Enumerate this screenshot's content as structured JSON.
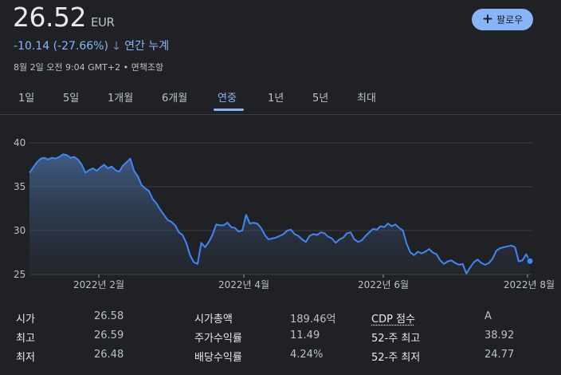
{
  "header": {
    "price": "26.52",
    "currency": "EUR",
    "change": "-10.14 (-27.66%)",
    "change_arrow": "🡓",
    "change_period": "연간 누계",
    "meta": "8월 2일 오전 9:04 GMT+2 • 면책조항",
    "follow_label": "팔로우",
    "follow_icon": "plus-icon"
  },
  "tabs": [
    {
      "label": "1일"
    },
    {
      "label": "5일"
    },
    {
      "label": "1개월"
    },
    {
      "label": "6개월"
    },
    {
      "label": "연중",
      "active": true
    },
    {
      "label": "1년"
    },
    {
      "label": "5년"
    },
    {
      "label": "최대"
    }
  ],
  "colors": {
    "background": "#202124",
    "line": "#4285f4",
    "accent": "#8ab4f8",
    "gridline": "#3c4043"
  },
  "chart_data": {
    "type": "area",
    "x_tick_labels": [
      "2022년 2월",
      "2022년 4월",
      "2022년 6월",
      "2022년 8월"
    ],
    "y_tick_labels": [
      "40",
      "35",
      "30",
      "25"
    ],
    "ylim": [
      25,
      40
    ],
    "grid": true,
    "xlabel": "",
    "ylabel": "",
    "series": [
      {
        "values": [
          36.6,
          37.2,
          37.8,
          38.2,
          38.3,
          38.1,
          38.3,
          38.2,
          38.4,
          38.7,
          38.6,
          38.3,
          38.4,
          38.1,
          37.5,
          36.6,
          36.9,
          37.1,
          36.8,
          37.2,
          37.5,
          37.1,
          37.3,
          36.9,
          36.7,
          37.4,
          37.8,
          38.2,
          36.8,
          36.2,
          35.2,
          34.8,
          34.5,
          33.6,
          33.1,
          32.4,
          31.8,
          31.2,
          31.0,
          30.6,
          29.8,
          29.5,
          28.6,
          27.2,
          26.4,
          26.2,
          28.6,
          28.1,
          28.7,
          29.5,
          30.7,
          30.6,
          30.6,
          30.9,
          30.4,
          30.3,
          29.9,
          30.0,
          31.8,
          30.8,
          30.9,
          30.8,
          30.3,
          29.5,
          29.0,
          29.1,
          29.2,
          29.4,
          29.6,
          30.0,
          30.1,
          29.6,
          29.4,
          29.0,
          28.7,
          29.4,
          29.6,
          29.5,
          29.8,
          29.7,
          29.3,
          29.1,
          28.6,
          29.0,
          29.2,
          29.7,
          29.8,
          29.0,
          28.7,
          28.9,
          29.4,
          29.8,
          30.2,
          30.1,
          30.5,
          30.4,
          30.8,
          30.5,
          30.7,
          30.3,
          30.0,
          28.5,
          27.5,
          27.2,
          27.6,
          27.4,
          27.6,
          27.9,
          27.5,
          27.3,
          26.6,
          26.2,
          26.5,
          26.6,
          26.3,
          26.1,
          26.2,
          25.1,
          25.8,
          26.4,
          26.7,
          26.3,
          26.1,
          26.3,
          26.8,
          27.7,
          28.0,
          28.1,
          28.2,
          28.3,
          28.1,
          26.5,
          26.6,
          27.3,
          26.52
        ]
      }
    ]
  },
  "stats": [
    [
      {
        "label": "시가",
        "value": "26.58"
      },
      {
        "label": "시가총액",
        "value": "189.46억"
      },
      {
        "label": "CDP 점수",
        "value": "A"
      }
    ],
    [
      {
        "label": "최고",
        "value": "26.59"
      },
      {
        "label": "주가수익률",
        "value": "11.49"
      },
      {
        "label": "52-주 최고",
        "value": "38.92"
      }
    ],
    [
      {
        "label": "최저",
        "value": "26.48"
      },
      {
        "label": "배당수익률",
        "value": "4.24%"
      },
      {
        "label": "52-주 최저",
        "value": "24.77"
      }
    ]
  ]
}
